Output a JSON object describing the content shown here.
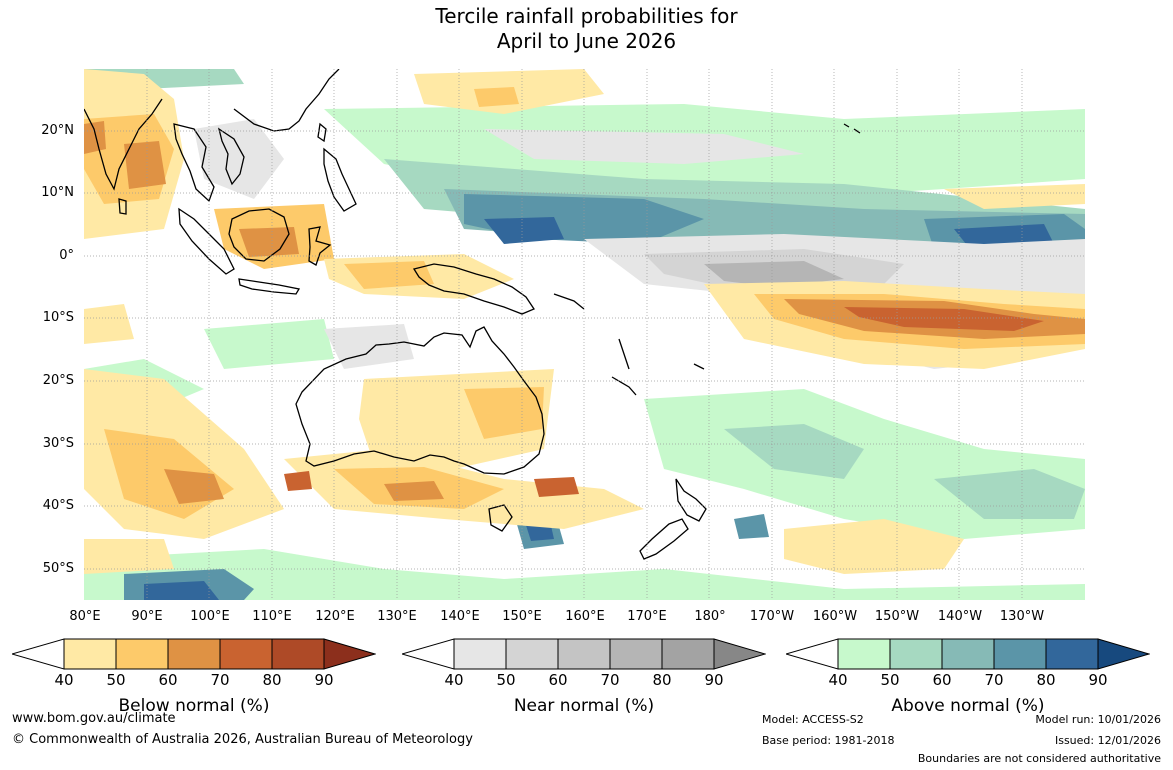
{
  "title_line1": "Tercile rainfall probabilities for",
  "title_line2": "April to June 2026",
  "lat_labels": [
    "20°N",
    "10°N",
    "0°",
    "10°S",
    "20°S",
    "30°S",
    "40°S",
    "50°S"
  ],
  "lon_labels": [
    "80°E",
    "90°E",
    "100°E",
    "110°E",
    "120°E",
    "130°E",
    "140°E",
    "150°E",
    "160°E",
    "170°E",
    "180°",
    "170°W",
    "160°W",
    "150°W",
    "140°W",
    "130°W"
  ],
  "colorbars": {
    "below": {
      "title": "Below normal (%)",
      "ticks": [
        "40",
        "50",
        "60",
        "70",
        "80",
        "90"
      ],
      "colors": [
        "#ffe9a5",
        "#fdca6a",
        "#df9244",
        "#c96330",
        "#ae4a27",
        "#8c2f1c"
      ]
    },
    "near": {
      "title": "Near normal (%)",
      "ticks": [
        "40",
        "50",
        "60",
        "70",
        "80",
        "90"
      ],
      "colors": [
        "#e6e6e6",
        "#d4d4d4",
        "#c4c4c4",
        "#b5b5b5",
        "#a3a3a3",
        "#878787"
      ]
    },
    "above": {
      "title": "Above normal (%)",
      "ticks": [
        "40",
        "50",
        "60",
        "70",
        "80",
        "90"
      ],
      "colors": [
        "#c7f9cc",
        "#a6d9c1",
        "#86bab6",
        "#5b95a8",
        "#32679b",
        "#17497e"
      ]
    }
  },
  "footer": {
    "website": "www.bom.gov.au/climate",
    "copyright": "© Commonwealth of Australia 2026, Australian Bureau of Meteorology",
    "model": "Model: ACCESS-S2",
    "base_period": "Base period: 1981-2018",
    "model_run": "Model run: 10/01/2026",
    "issued": "Issued: 12/01/2026",
    "disclaimer": "Boundaries are not considered authoritative"
  }
}
